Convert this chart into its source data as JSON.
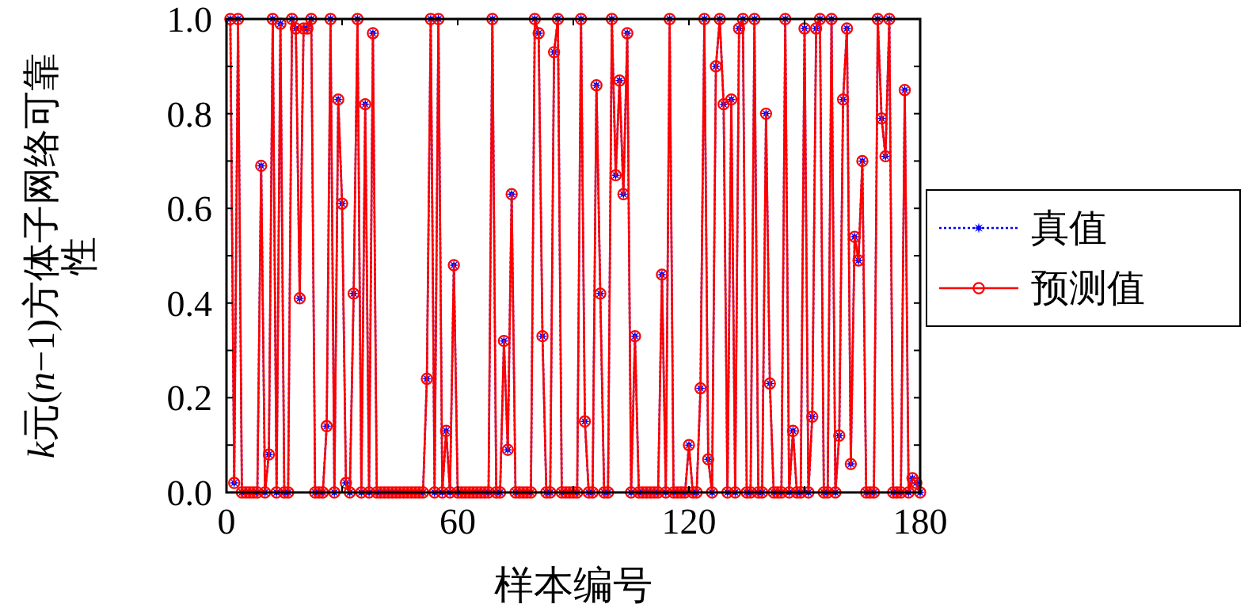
{
  "chart_data": {
    "type": "line",
    "xlabel": "样本编号",
    "ylabel": "k元(n−1)方体子网络可靠性",
    "xlim": [
      0,
      180
    ],
    "xticks": [
      0,
      {
        "value": 30,
        "label": null
      },
      60,
      {
        "value": 90,
        "label": null
      },
      120,
      {
        "value": 150,
        "label": null
      },
      180
    ],
    "ylim": [
      0,
      1
    ],
    "yticks": [
      {
        "value": 0,
        "label": "0.0"
      },
      {
        "value": 0.1,
        "label": null
      },
      0.2,
      {
        "value": 0.3,
        "label": null
      },
      0.4,
      {
        "value": 0.5,
        "label": null
      },
      0.6,
      {
        "value": 0.7,
        "label": null
      },
      0.8,
      {
        "value": 0.9,
        "label": null
      },
      {
        "value": 1,
        "label": "1.0"
      }
    ],
    "legend": "right",
    "x": [
      1,
      2,
      3,
      4,
      5,
      6,
      7,
      8,
      9,
      10,
      11,
      12,
      13,
      14,
      15,
      16,
      17,
      18,
      19,
      20,
      21,
      22,
      23,
      24,
      25,
      26,
      27,
      28,
      29,
      30,
      31,
      32,
      33,
      34,
      35,
      36,
      37,
      38,
      39,
      40,
      41,
      42,
      43,
      44,
      45,
      46,
      47,
      48,
      49,
      50,
      51,
      52,
      53,
      54,
      55,
      56,
      57,
      58,
      59,
      60,
      61,
      62,
      63,
      64,
      65,
      66,
      67,
      68,
      69,
      70,
      71,
      72,
      73,
      74,
      75,
      76,
      77,
      78,
      79,
      80,
      81,
      82,
      83,
      84,
      85,
      86,
      87,
      88,
      89,
      90,
      91,
      92,
      93,
      94,
      95,
      96,
      97,
      98,
      99,
      100,
      101,
      102,
      103,
      104,
      105,
      106,
      107,
      108,
      109,
      110,
      111,
      112,
      113,
      114,
      115,
      116,
      117,
      118,
      119,
      120,
      121,
      122,
      123,
      124,
      125,
      126,
      127,
      128,
      129,
      130,
      131,
      132,
      133,
      134,
      135,
      136,
      137,
      138,
      139,
      140,
      141,
      142,
      143,
      144,
      145,
      146,
      147,
      148,
      149,
      150,
      151,
      152,
      153,
      154,
      155,
      156,
      157,
      158,
      159,
      160,
      161,
      162,
      163,
      164,
      165,
      166,
      167,
      168,
      169,
      170,
      171,
      172,
      173,
      174,
      175,
      176,
      177,
      178,
      179,
      180
    ],
    "series": [
      {
        "name": "真值",
        "color": "#0000ff",
        "line_style": "dotted",
        "marker": "star",
        "values": [
          1,
          0.02,
          1,
          0,
          0,
          0,
          0,
          0,
          0.69,
          0,
          0.08,
          1,
          0,
          0.99,
          0,
          0,
          1,
          0.98,
          0.41,
          0.98,
          0.98,
          1,
          0,
          0,
          0,
          0.14,
          1,
          0,
          0.83,
          0.61,
          0.02,
          0,
          0.42,
          1,
          0,
          0.82,
          0,
          0.97,
          0,
          0,
          0,
          0,
          0,
          0,
          0,
          0,
          0,
          0,
          0,
          0,
          0,
          0.24,
          1,
          0,
          1,
          0,
          0.13,
          0,
          0.48,
          0,
          0,
          0,
          0,
          0,
          0,
          0,
          0,
          0,
          1,
          0,
          0,
          0.32,
          0.09,
          0.63,
          0,
          0,
          0,
          0,
          0,
          1,
          0.97,
          0.33,
          0,
          0,
          0.93,
          1,
          0,
          0,
          0,
          0,
          0,
          1,
          0.15,
          0,
          0,
          0.86,
          0.42,
          0,
          0,
          1,
          0.67,
          0.87,
          0.63,
          0.97,
          0,
          0.33,
          0,
          0,
          0,
          0,
          0,
          0,
          0.46,
          0,
          1,
          0,
          0,
          0,
          0,
          0.1,
          0,
          0,
          0.22,
          1,
          0.07,
          0,
          0.9,
          1,
          0.82,
          0,
          0.83,
          0,
          0.98,
          1,
          0,
          0,
          1,
          0,
          0,
          0.8,
          0.23,
          0,
          0,
          0,
          1,
          0,
          0.13,
          0,
          0,
          0.98,
          0,
          0.16,
          0.98,
          1,
          0,
          0,
          1,
          0,
          0.12,
          0.83,
          0.98,
          0.06,
          0.54,
          0.49,
          0.7,
          0,
          0,
          0,
          1,
          0.79,
          0.71,
          1,
          0,
          0,
          0,
          0.85,
          0,
          0.03,
          0.02,
          0
        ]
      },
      {
        "name": "预测值",
        "color": "#ff0000",
        "line_style": "solid",
        "marker": "circle",
        "values": [
          1,
          0.02,
          1,
          0,
          0,
          0,
          0,
          0,
          0.69,
          0,
          0.08,
          1,
          0,
          0.99,
          0,
          0,
          1,
          0.98,
          0.41,
          0.98,
          0.98,
          1,
          0,
          0,
          0,
          0.14,
          1,
          0,
          0.83,
          0.61,
          0.02,
          0,
          0.42,
          1,
          0,
          0.82,
          0,
          0.97,
          0,
          0,
          0,
          0,
          0,
          0,
          0,
          0,
          0,
          0,
          0,
          0,
          0,
          0.24,
          1,
          0,
          1,
          0,
          0.13,
          0,
          0.48,
          0,
          0,
          0,
          0,
          0,
          0,
          0,
          0,
          0,
          1,
          0,
          0,
          0.32,
          0.09,
          0.63,
          0,
          0,
          0,
          0,
          0,
          1,
          0.97,
          0.33,
          0,
          0,
          0.93,
          1,
          0,
          0,
          0,
          0,
          0,
          1,
          0.15,
          0,
          0,
          0.86,
          0.42,
          0,
          0,
          1,
          0.67,
          0.87,
          0.63,
          0.97,
          0,
          0.33,
          0,
          0,
          0,
          0,
          0,
          0,
          0.46,
          0,
          1,
          0,
          0,
          0,
          0,
          0.1,
          0,
          0,
          0.22,
          1,
          0.07,
          0,
          0.9,
          1,
          0.82,
          0,
          0.83,
          0,
          0.98,
          1,
          0,
          0,
          1,
          0,
          0,
          0.8,
          0.23,
          0,
          0,
          0,
          1,
          0,
          0.13,
          0,
          0,
          0.98,
          0,
          0.16,
          0.98,
          1,
          0,
          0,
          1,
          0,
          0.12,
          0.83,
          0.98,
          0.06,
          0.54,
          0.49,
          0.7,
          0,
          0,
          0,
          1,
          0.79,
          0.71,
          1,
          0,
          0,
          0,
          0.85,
          0,
          0.03,
          0.02,
          0
        ]
      }
    ]
  }
}
